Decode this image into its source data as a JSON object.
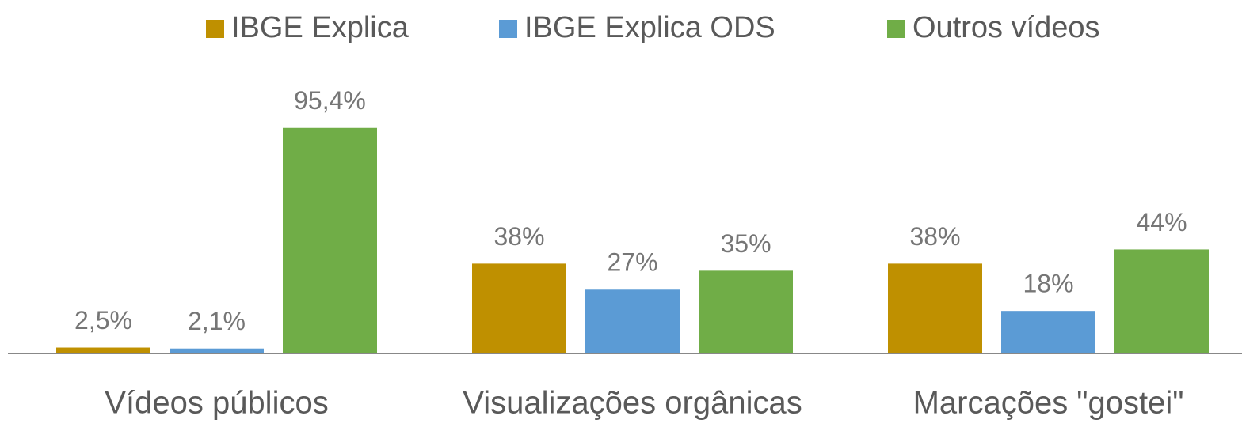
{
  "chart_data": {
    "type": "bar",
    "categories": [
      "Vídeos públicos",
      "Visualizações orgânicas",
      "Marcações \"gostei\""
    ],
    "series": [
      {
        "name": "IBGE Explica",
        "color": "#bf9000",
        "values": [
          2.5,
          38,
          38
        ],
        "value_labels": [
          "2,5%",
          "38%",
          "38%"
        ]
      },
      {
        "name": "IBGE Explica ODS",
        "color": "#5b9bd5",
        "values": [
          2.1,
          27,
          18
        ],
        "value_labels": [
          "2,1%",
          "27%",
          "18%"
        ]
      },
      {
        "name": "Outros vídeos",
        "color": "#70ad47",
        "values": [
          95.4,
          35,
          44
        ],
        "value_labels": [
          "95,4%",
          "35%",
          "44%"
        ]
      }
    ],
    "legend": "top"
  }
}
